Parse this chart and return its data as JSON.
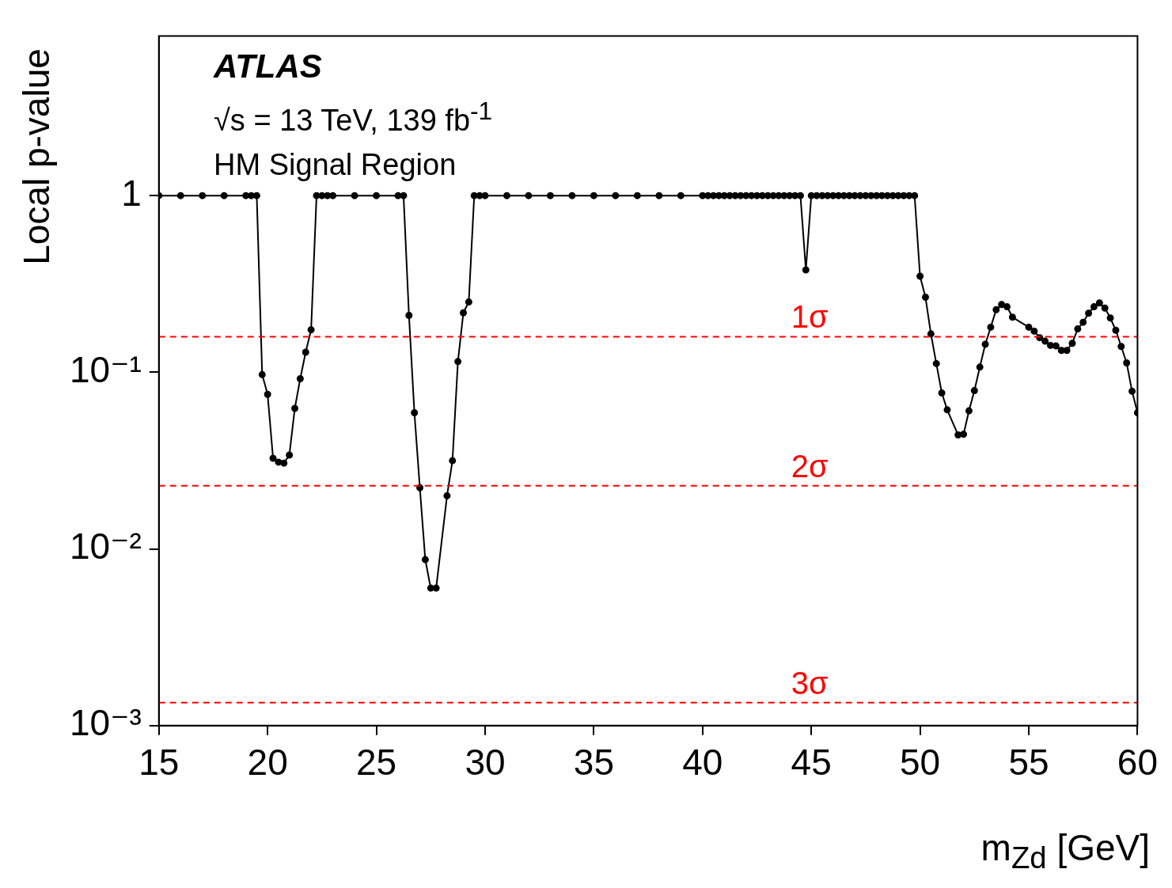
{
  "chart_data": {
    "type": "line",
    "xlabel": "m$_{Zd}$ [GeV]",
    "ylabel": "Local p-value",
    "annotations": [
      "ATLAS",
      "√s = 13 TeV, 139 fb$^{-1}$",
      "HM Signal Region"
    ],
    "x": [
      15,
      16,
      17,
      18,
      19,
      19.25,
      19.5,
      19.75,
      20,
      20.25,
      20.5,
      20.75,
      21,
      21.25,
      21.5,
      21.75,
      22,
      22.25,
      22.5,
      22.75,
      23,
      24,
      25,
      26,
      26.25,
      26.5,
      26.75,
      27,
      27.25,
      27.5,
      27.75,
      28.25,
      28.5,
      28.75,
      29,
      29.25,
      29.5,
      29.75,
      30,
      31,
      32,
      33,
      34,
      35,
      36,
      37,
      38,
      39,
      40,
      40.25,
      40.5,
      40.75,
      41,
      41.25,
      41.5,
      41.75,
      42,
      42.25,
      42.5,
      42.75,
      43,
      43.25,
      43.5,
      43.75,
      44,
      44.25,
      44.5,
      44.75,
      45,
      45.25,
      45.5,
      45.75,
      46,
      46.25,
      46.5,
      46.75,
      47,
      47.25,
      47.5,
      47.75,
      48,
      48.25,
      48.5,
      48.75,
      49,
      49.25,
      49.5,
      49.75,
      50,
      50.25,
      50.5,
      50.75,
      51,
      51.25,
      51.75,
      52,
      52.25,
      52.5,
      52.75,
      53,
      53.25,
      53.5,
      53.75,
      54,
      54.25,
      55,
      55.25,
      55.5,
      55.75,
      56,
      56.25,
      56.5,
      56.75,
      57,
      57.25,
      57.5,
      57.75,
      58,
      58.25,
      58.5,
      58.75,
      59,
      59.25,
      59.5,
      59.75,
      60
    ],
    "series": [
      {
        "color": "#000000",
        "values": [
          1,
          1,
          1,
          1,
          1,
          1,
          1,
          0.097,
          0.075,
          0.0326,
          0.031,
          0.0306,
          0.034,
          0.0625,
          0.092,
          0.13,
          0.174,
          1,
          1,
          1,
          1,
          1,
          1,
          1,
          1,
          0.21,
          0.059,
          0.0222,
          0.0087,
          0.006,
          0.006,
          0.02,
          0.0316,
          0.115,
          0.217,
          0.25,
          1,
          1,
          1,
          1,
          1,
          1,
          1,
          1,
          1,
          1,
          1,
          1,
          1,
          1,
          1,
          1,
          1,
          1,
          1,
          1,
          1,
          1,
          1,
          1,
          1,
          1,
          1,
          1,
          1,
          1,
          1,
          0.38,
          1,
          1,
          1,
          1,
          1,
          1,
          1,
          1,
          1,
          1,
          1,
          1,
          1,
          1,
          1,
          1,
          1,
          1,
          1,
          1,
          0.35,
          0.266,
          0.165,
          0.112,
          0.0764,
          0.0613,
          0.0442,
          0.0446,
          0.0605,
          0.0788,
          0.107,
          0.144,
          0.18,
          0.226,
          0.242,
          0.235,
          0.205,
          0.18,
          0.171,
          0.157,
          0.15,
          0.142,
          0.141,
          0.133,
          0.133,
          0.146,
          0.176,
          0.192,
          0.216,
          0.235,
          0.247,
          0.231,
          0.203,
          0.173,
          0.14,
          0.113,
          0.0781,
          0.059
        ]
      }
    ],
    "xlim": [
      15,
      60
    ],
    "xticks": [
      15,
      20,
      25,
      30,
      35,
      40,
      45,
      50,
      55,
      60
    ],
    "ylim": [
      0.001,
      8
    ],
    "yticks": [
      {
        "value": 0.001,
        "label": "10⁻³"
      },
      {
        "value": 0.01,
        "label": "10⁻²"
      },
      {
        "value": 0.1,
        "label": "10⁻¹"
      },
      1
    ],
    "log": "y",
    "grid": false,
    "legend": false,
    "marker": "circle",
    "line_style": "solid",
    "ref_lines": [
      {
        "axis": "y",
        "value": 0.159,
        "label": "1σ",
        "color": "#ff0000",
        "line_style": "dashed"
      },
      {
        "axis": "y",
        "value": 0.0228,
        "label": "2σ",
        "color": "#ff0000",
        "line_style": "dashed"
      },
      {
        "axis": "y",
        "value": 0.00135,
        "label": "3σ",
        "color": "#ff0000",
        "line_style": "dashed"
      }
    ]
  }
}
